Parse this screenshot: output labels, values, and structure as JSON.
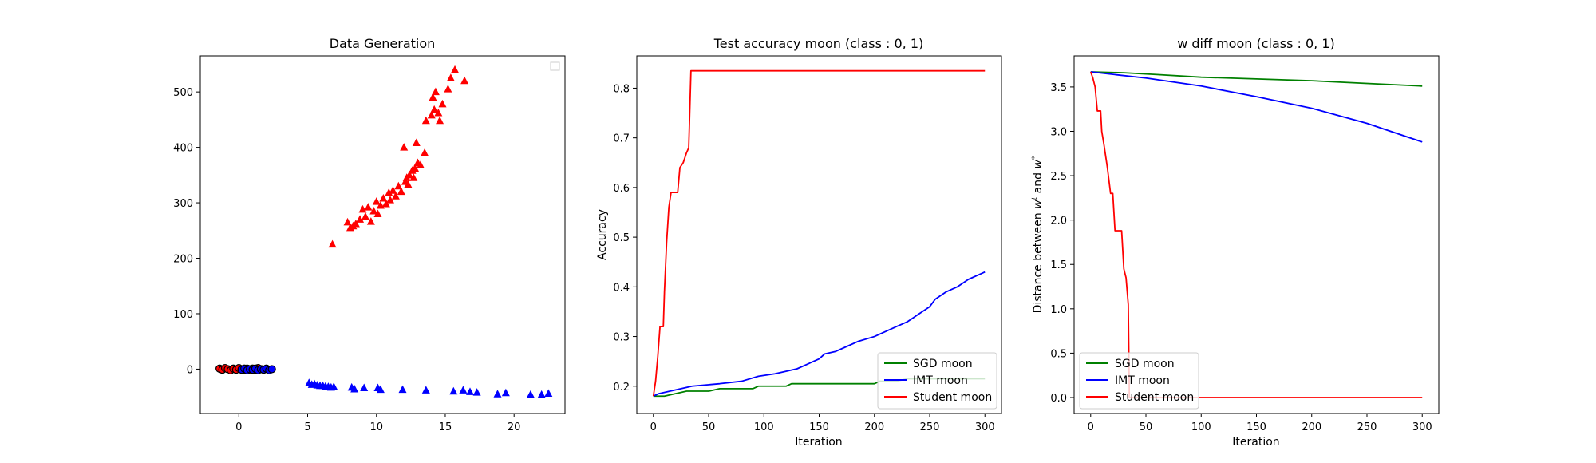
{
  "chart_data": [
    {
      "type": "scatter",
      "title": "Data Generation",
      "xlabel": "",
      "ylabel": "",
      "xlim": [
        -2.8,
        23.7
      ],
      "ylim": [
        -80,
        565
      ],
      "xticks": [
        0,
        5,
        10,
        15,
        20
      ],
      "yticks": [
        0,
        100,
        200,
        300,
        400,
        500
      ],
      "legend": {
        "position": "top-right",
        "entries": []
      },
      "series": [
        {
          "marker": "triangle",
          "color": "#ff0000",
          "points": [
            [
              6.8,
              225
            ],
            [
              7.9,
              265
            ],
            [
              8.1,
              255
            ],
            [
              8.3,
              258
            ],
            [
              8.5,
              262
            ],
            [
              8.8,
              270
            ],
            [
              9.0,
              288
            ],
            [
              9.2,
              275
            ],
            [
              9.4,
              292
            ],
            [
              9.6,
              266
            ],
            [
              9.8,
              285
            ],
            [
              10.0,
              302
            ],
            [
              10.1,
              280
            ],
            [
              10.3,
              295
            ],
            [
              10.5,
              308
            ],
            [
              10.7,
              298
            ],
            [
              10.9,
              318
            ],
            [
              11.0,
              305
            ],
            [
              11.2,
              322
            ],
            [
              11.4,
              312
            ],
            [
              11.6,
              330
            ],
            [
              11.8,
              320
            ],
            [
              12.0,
              400
            ],
            [
              12.1,
              338
            ],
            [
              12.2,
              345
            ],
            [
              12.3,
              333
            ],
            [
              12.4,
              350
            ],
            [
              12.6,
              358
            ],
            [
              12.7,
              345
            ],
            [
              12.8,
              362
            ],
            [
              12.9,
              408
            ],
            [
              13.0,
              372
            ],
            [
              13.2,
              368
            ],
            [
              13.5,
              390
            ],
            [
              13.6,
              448
            ],
            [
              14.0,
              458
            ],
            [
              14.1,
              490
            ],
            [
              14.2,
              468
            ],
            [
              14.3,
              500
            ],
            [
              14.5,
              462
            ],
            [
              14.6,
              448
            ],
            [
              14.8,
              478
            ],
            [
              15.2,
              505
            ],
            [
              15.4,
              525
            ],
            [
              15.7,
              540
            ],
            [
              16.4,
              520
            ]
          ]
        },
        {
          "marker": "triangle",
          "color": "#0000ff",
          "points": [
            [
              5.1,
              -25
            ],
            [
              5.3,
              -28
            ],
            [
              5.5,
              -27
            ],
            [
              5.7,
              -29
            ],
            [
              5.9,
              -30
            ],
            [
              6.1,
              -30
            ],
            [
              6.3,
              -31
            ],
            [
              6.5,
              -32
            ],
            [
              6.7,
              -33
            ],
            [
              6.9,
              -32
            ],
            [
              8.2,
              -33
            ],
            [
              8.4,
              -36
            ],
            [
              9.1,
              -34
            ],
            [
              10.1,
              -34
            ],
            [
              10.3,
              -37
            ],
            [
              11.9,
              -37
            ],
            [
              13.6,
              -38
            ],
            [
              15.6,
              -40
            ],
            [
              16.3,
              -38
            ],
            [
              16.8,
              -41
            ],
            [
              17.3,
              -42
            ],
            [
              18.8,
              -45
            ],
            [
              19.4,
              -43
            ],
            [
              21.2,
              -46
            ],
            [
              22.0,
              -46
            ],
            [
              22.5,
              -44
            ]
          ]
        },
        {
          "marker": "circle",
          "color": "#ff0000",
          "edgecolor": "#000000",
          "points": [
            [
              -1.4,
              1
            ],
            [
              -1.2,
              -1
            ],
            [
              -1.0,
              2
            ],
            [
              -0.8,
              0
            ],
            [
              -0.6,
              -2
            ],
            [
              -0.4,
              1
            ],
            [
              -0.2,
              -1
            ],
            [
              0.0,
              2
            ],
            [
              0.2,
              0
            ],
            [
              0.4,
              -1
            ],
            [
              0.6,
              1
            ],
            [
              0.8,
              -2
            ],
            [
              1.0,
              1
            ],
            [
              1.2,
              -1
            ],
            [
              1.4,
              2
            ],
            [
              1.6,
              0
            ]
          ]
        },
        {
          "marker": "circle",
          "color": "#0000ff",
          "edgecolor": "#000000",
          "points": [
            [
              0.2,
              -1
            ],
            [
              0.4,
              1
            ],
            [
              0.6,
              -2
            ],
            [
              0.8,
              0
            ],
            [
              1.0,
              -1
            ],
            [
              1.2,
              1
            ],
            [
              1.4,
              -2
            ],
            [
              1.6,
              0
            ],
            [
              1.8,
              -1
            ],
            [
              2.0,
              1
            ],
            [
              2.2,
              -2
            ],
            [
              2.4,
              0
            ]
          ]
        }
      ]
    },
    {
      "type": "line",
      "title": "Test accuracy moon (class : 0, 1)",
      "xlabel": "Iteration",
      "ylabel": "Accuracy",
      "xlim": [
        -15,
        315
      ],
      "ylim": [
        0.145,
        0.865
      ],
      "xticks": [
        0,
        50,
        100,
        150,
        200,
        250,
        300
      ],
      "yticks": [
        0.2,
        0.3,
        0.4,
        0.5,
        0.6,
        0.7,
        0.8
      ],
      "legend": {
        "position": "bottom-right"
      },
      "series": [
        {
          "name": "SGD moon",
          "color": "#008000",
          "points": [
            [
              0,
              0.18
            ],
            [
              10,
              0.18
            ],
            [
              20,
              0.185
            ],
            [
              30,
              0.19
            ],
            [
              50,
              0.19
            ],
            [
              60,
              0.195
            ],
            [
              90,
              0.195
            ],
            [
              95,
              0.2
            ],
            [
              120,
              0.2
            ],
            [
              125,
              0.205
            ],
            [
              200,
              0.205
            ],
            [
              205,
              0.21
            ],
            [
              220,
              0.21
            ],
            [
              230,
              0.215
            ],
            [
              300,
              0.215
            ]
          ]
        },
        {
          "name": "IMT moon",
          "color": "#0000ff",
          "points": [
            [
              0,
              0.18
            ],
            [
              5,
              0.185
            ],
            [
              15,
              0.19
            ],
            [
              35,
              0.2
            ],
            [
              60,
              0.205
            ],
            [
              80,
              0.21
            ],
            [
              95,
              0.22
            ],
            [
              110,
              0.225
            ],
            [
              120,
              0.23
            ],
            [
              130,
              0.235
            ],
            [
              140,
              0.245
            ],
            [
              150,
              0.255
            ],
            [
              155,
              0.265
            ],
            [
              165,
              0.27
            ],
            [
              175,
              0.28
            ],
            [
              185,
              0.29
            ],
            [
              200,
              0.3
            ],
            [
              210,
              0.31
            ],
            [
              220,
              0.32
            ],
            [
              230,
              0.33
            ],
            [
              240,
              0.345
            ],
            [
              250,
              0.36
            ],
            [
              255,
              0.375
            ],
            [
              265,
              0.39
            ],
            [
              275,
              0.4
            ],
            [
              285,
              0.415
            ],
            [
              295,
              0.425
            ],
            [
              300,
              0.43
            ]
          ]
        },
        {
          "name": "Student moon",
          "color": "#ff0000",
          "points": [
            [
              0,
              0.18
            ],
            [
              2,
              0.21
            ],
            [
              4,
              0.26
            ],
            [
              6,
              0.32
            ],
            [
              9,
              0.32
            ],
            [
              10,
              0.39
            ],
            [
              12,
              0.49
            ],
            [
              14,
              0.56
            ],
            [
              16,
              0.59
            ],
            [
              22,
              0.59
            ],
            [
              24,
              0.64
            ],
            [
              27,
              0.65
            ],
            [
              30,
              0.67
            ],
            [
              32,
              0.68
            ],
            [
              34,
              0.835
            ],
            [
              300,
              0.835
            ]
          ]
        }
      ]
    },
    {
      "type": "line",
      "title": "w diff moon (class : 0, 1)",
      "xlabel": "Iteration",
      "ylabel": "Distance between w^t and w^*",
      "xlim": [
        -15,
        315
      ],
      "ylim": [
        -0.18,
        3.85
      ],
      "xticks": [
        0,
        50,
        100,
        150,
        200,
        250,
        300
      ],
      "yticks": [
        0.0,
        0.5,
        1.0,
        1.5,
        2.0,
        2.5,
        3.0,
        3.5
      ],
      "legend": {
        "position": "bottom-left"
      },
      "series": [
        {
          "name": "SGD moon",
          "color": "#008000",
          "points": [
            [
              0,
              3.67
            ],
            [
              30,
              3.66
            ],
            [
              60,
              3.64
            ],
            [
              100,
              3.61
            ],
            [
              150,
              3.59
            ],
            [
              200,
              3.57
            ],
            [
              250,
              3.54
            ],
            [
              300,
              3.51
            ]
          ]
        },
        {
          "name": "IMT moon",
          "color": "#0000ff",
          "points": [
            [
              0,
              3.67
            ],
            [
              50,
              3.6
            ],
            [
              100,
              3.51
            ],
            [
              150,
              3.39
            ],
            [
              200,
              3.26
            ],
            [
              250,
              3.09
            ],
            [
              300,
              2.88
            ]
          ]
        },
        {
          "name": "Student moon",
          "color": "#ff0000",
          "points": [
            [
              0,
              3.67
            ],
            [
              2,
              3.6
            ],
            [
              4,
              3.5
            ],
            [
              6,
              3.23
            ],
            [
              9,
              3.23
            ],
            [
              10,
              3.0
            ],
            [
              12,
              2.85
            ],
            [
              15,
              2.6
            ],
            [
              18,
              2.3
            ],
            [
              20,
              2.3
            ],
            [
              22,
              1.88
            ],
            [
              28,
              1.88
            ],
            [
              30,
              1.45
            ],
            [
              32,
              1.35
            ],
            [
              33,
              1.2
            ],
            [
              34,
              1.05
            ],
            [
              35,
              0.0
            ],
            [
              300,
              0.0
            ]
          ]
        }
      ]
    }
  ]
}
